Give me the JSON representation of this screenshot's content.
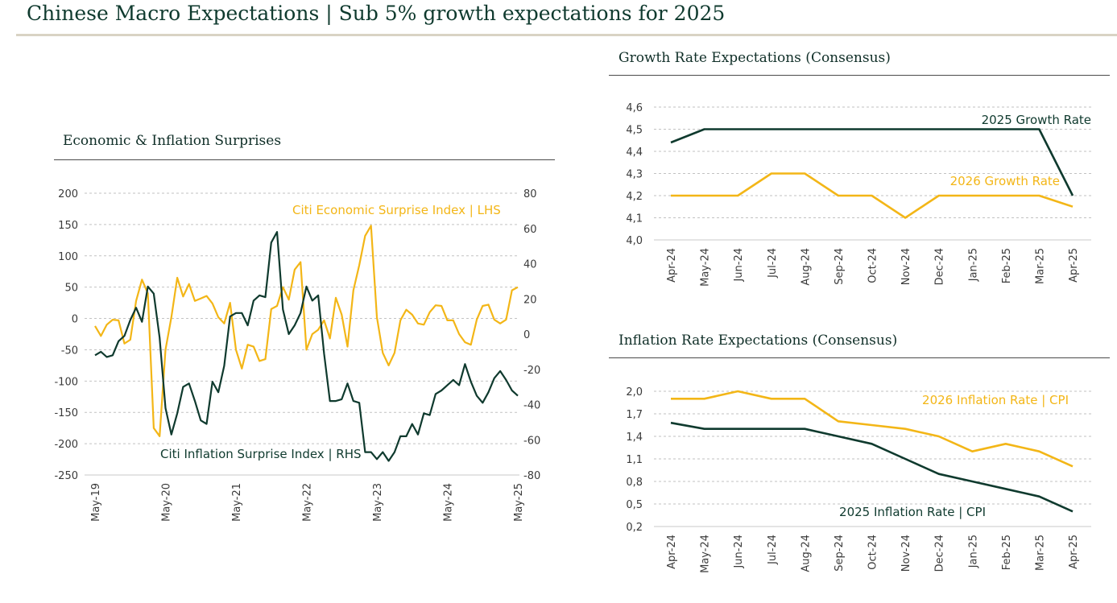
{
  "page": {
    "title": "Chinese Macro Expectations | Sub 5% growth expectations for 2025"
  },
  "colors": {
    "gold": "#f3b617",
    "dark": "#0f3a2e",
    "grid": "#c2c2c2",
    "rule": "#d9d3c4"
  },
  "chart_data": [
    {
      "id": "surprises",
      "type": "line",
      "title": "Economic & Inflation Surprises",
      "x": [
        "May-19",
        "Jun-19",
        "Jul-19",
        "Aug-19",
        "Sep-19",
        "Oct-19",
        "Nov-19",
        "Dec-19",
        "Jan-20",
        "Feb-20",
        "Mar-20",
        "Apr-20",
        "May-20",
        "Jun-20",
        "Jul-20",
        "Aug-20",
        "Sep-20",
        "Oct-20",
        "Nov-20",
        "Dec-20",
        "Jan-21",
        "Feb-21",
        "Mar-21",
        "Apr-21",
        "May-21",
        "Jun-21",
        "Jul-21",
        "Aug-21",
        "Sep-21",
        "Oct-21",
        "Nov-21",
        "Dec-21",
        "Jan-22",
        "Feb-22",
        "Mar-22",
        "Apr-22",
        "May-22",
        "Jun-22",
        "Jul-22",
        "Aug-22",
        "Sep-22",
        "Oct-22",
        "Nov-22",
        "Dec-22",
        "Jan-23",
        "Feb-23",
        "Mar-23",
        "Apr-23",
        "May-23",
        "Jun-23",
        "Jul-23",
        "Aug-23",
        "Sep-23",
        "Oct-23",
        "Nov-23",
        "Dec-23",
        "Jan-24",
        "Feb-24",
        "Mar-24",
        "Apr-24",
        "May-24",
        "Jun-24",
        "Jul-24",
        "Aug-24",
        "Sep-24",
        "Oct-24",
        "Nov-24",
        "Dec-24",
        "Jan-25",
        "Feb-25",
        "Mar-25",
        "Apr-25",
        "May-25"
      ],
      "x_tick_labels": [
        "May-19",
        "May-20",
        "May-21",
        "May-22",
        "May-23",
        "May-24",
        "May-25"
      ],
      "left_axis": {
        "ticks": [
          200,
          150,
          100,
          50,
          0,
          -50,
          -100,
          -150,
          -200,
          -250
        ],
        "tick_labels": [
          "200",
          "150",
          "100",
          "50",
          "0",
          "-50",
          "-100",
          "-150",
          "-200",
          "-250"
        ],
        "range": [
          -250,
          200
        ]
      },
      "right_axis": {
        "ticks": [
          80,
          60,
          40,
          20,
          0,
          -20,
          -40,
          -60,
          -80
        ],
        "tick_labels": [
          "80",
          "60",
          "40",
          "20",
          "0",
          "-20",
          "-40",
          "-60",
          "-80"
        ],
        "range": [
          -80,
          80
        ]
      },
      "series": [
        {
          "name": "Citi Economic Surprise Index | LHS",
          "axis": "left",
          "color": "#f3b617",
          "values": [
            -12,
            -28,
            -10,
            -2,
            -3,
            -40,
            -34,
            28,
            62,
            40,
            -175,
            -188,
            -50,
            2,
            65,
            35,
            55,
            28,
            32,
            36,
            24,
            2,
            -8,
            25,
            -50,
            -80,
            -42,
            -45,
            -68,
            -65,
            15,
            20,
            50,
            30,
            78,
            90,
            -50,
            -25,
            -18,
            -3,
            -32,
            33,
            6,
            -45,
            45,
            85,
            132,
            148,
            2,
            -55,
            -75,
            -55,
            -3,
            14,
            6,
            -8,
            -10,
            10,
            21,
            20,
            -3,
            -3,
            -25,
            -38,
            -42,
            -2,
            20,
            22,
            -2,
            -8,
            -2,
            45,
            50
          ]
        },
        {
          "name": "Citi Inflation Surprise Index | RHS",
          "axis": "right",
          "color": "#0f3a2e",
          "values": [
            -12,
            -10,
            -13,
            -12,
            -4,
            -1,
            8,
            15,
            7,
            27,
            23,
            -2,
            -42,
            -57,
            -45,
            -30,
            -28,
            -38,
            -49,
            -51,
            -27,
            -33,
            -18,
            10,
            12,
            12,
            5,
            19,
            22,
            21,
            52,
            58,
            14,
            0,
            5,
            12,
            27,
            19,
            22,
            -11,
            -38,
            -38,
            -37,
            -28,
            -38,
            -39,
            -67,
            -67,
            -71,
            -67,
            -72,
            -67,
            -58,
            -58,
            -51,
            -57,
            -45,
            -46,
            -34,
            -32,
            -29,
            -26,
            -29,
            -17,
            -27,
            -35,
            -39,
            -33,
            -25,
            -21,
            -26,
            -32,
            -35
          ]
        }
      ],
      "annotations": {
        "economic": "Citi Economic Surprise Index | LHS",
        "inflation": "Citi Inflation Surprise Index | RHS"
      }
    },
    {
      "id": "growth",
      "type": "line",
      "title": "Growth Rate Expectations (Consensus)",
      "categories": [
        "Apr-24",
        "May-24",
        "Jun-24",
        "Jul-24",
        "Aug-24",
        "Sep-24",
        "Oct-24",
        "Nov-24",
        "Dec-24",
        "Jan-25",
        "Feb-25",
        "Mar-25",
        "Apr-25"
      ],
      "y_axis": {
        "ticks": [
          4.6,
          4.5,
          4.4,
          4.3,
          4.2,
          4.1,
          4.0
        ],
        "tick_labels": [
          "4,6",
          "4,5",
          "4,4",
          "4,3",
          "4,2",
          "4,1",
          "4,0"
        ],
        "range": [
          4.0,
          4.6
        ]
      },
      "series": [
        {
          "name": "2025 Growth Rate",
          "color": "#0f3a2e",
          "values": [
            4.44,
            4.5,
            4.5,
            4.5,
            4.5,
            4.5,
            4.5,
            4.5,
            4.5,
            4.5,
            4.5,
            4.5,
            4.2
          ]
        },
        {
          "name": "2026 Growth Rate",
          "color": "#f3b617",
          "values": [
            4.2,
            4.2,
            4.2,
            4.3,
            4.3,
            4.2,
            4.2,
            4.1,
            4.2,
            4.2,
            4.2,
            4.2,
            4.15
          ]
        }
      ]
    },
    {
      "id": "inflation",
      "type": "line",
      "title": "Inflation Rate Expectations (Consensus)",
      "categories": [
        "Apr-24",
        "May-24",
        "Jun-24",
        "Jul-24",
        "Aug-24",
        "Sep-24",
        "Oct-24",
        "Nov-24",
        "Dec-24",
        "Jan-25",
        "Feb-25",
        "Mar-25",
        "Apr-25"
      ],
      "y_axis": {
        "ticks": [
          2.0,
          1.7,
          1.4,
          1.1,
          0.8,
          0.5,
          0.2
        ],
        "tick_labels": [
          "2,0",
          "1,7",
          "1,4",
          "1,1",
          "0,8",
          "0,5",
          "0,2"
        ],
        "range": [
          0.2,
          2.0
        ]
      },
      "series": [
        {
          "name": "2026 Inflation Rate | CPI",
          "color": "#f3b617",
          "values": [
            1.9,
            1.9,
            2.0,
            1.9,
            1.9,
            1.6,
            1.55,
            1.5,
            1.4,
            1.2,
            1.3,
            1.2,
            1.0
          ]
        },
        {
          "name": "2025 Inflation Rate | CPI",
          "color": "#0f3a2e",
          "values": [
            1.58,
            1.5,
            1.5,
            1.5,
            1.5,
            1.4,
            1.3,
            1.1,
            0.9,
            0.8,
            0.7,
            0.6,
            0.4
          ]
        }
      ]
    }
  ]
}
